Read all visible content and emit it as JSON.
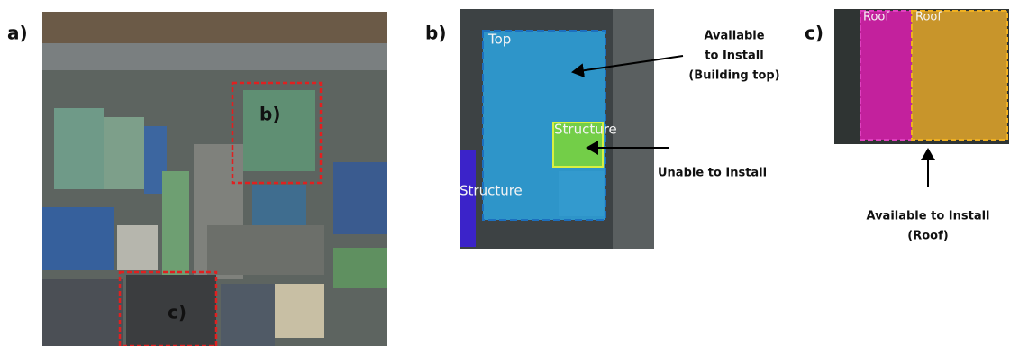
{
  "panels": [
    {
      "label": "a)",
      "image_labels": [
        "b)",
        "c)"
      ]
    },
    {
      "label": "b)",
      "regions": [
        "Top",
        "Structure",
        "Structure"
      ],
      "annotations": [
        {
          "lines": [
            "Available",
            "to Install",
            "(Building top)"
          ]
        },
        {
          "lines": [
            "Unable to Install"
          ]
        }
      ]
    },
    {
      "label": "c)",
      "regions": [
        "Roof",
        "Roof"
      ],
      "annotations": [
        {
          "lines": [
            "Available to Install",
            "(Roof)"
          ]
        }
      ]
    }
  ]
}
